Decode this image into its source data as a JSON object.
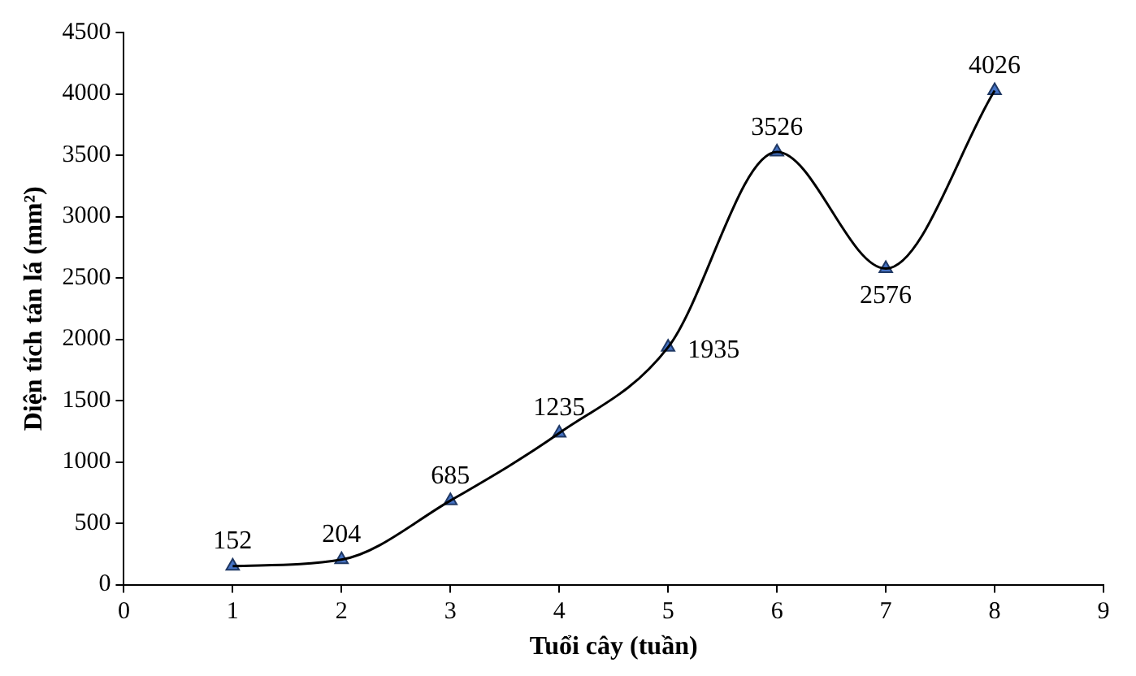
{
  "chart_data": {
    "type": "line",
    "xlabel": "Tuổi cây (tuần)",
    "ylabel": "Diện tích tán lá (mm²)",
    "x": [
      1,
      2,
      3,
      4,
      5,
      6,
      7,
      8
    ],
    "series": [
      {
        "color": "#000000",
        "marker": "none",
        "values": [
          152,
          204,
          685,
          1235,
          1935,
          3526,
          2576,
          4026
        ]
      },
      {
        "type": "scatter",
        "color": "#4472c4",
        "values": [
          152,
          204,
          685,
          1235,
          1935,
          3526,
          2576,
          4026
        ],
        "value_labels": [
          "152",
          "204",
          "685",
          "1235",
          "1935",
          "3526",
          "2576",
          "4026"
        ]
      }
    ],
    "xlim": [
      0,
      9
    ],
    "xticks": [
      0,
      1,
      2,
      3,
      4,
      5,
      6,
      7,
      8,
      9
    ],
    "ylim": [
      0,
      4500
    ],
    "yticks": [
      0,
      500,
      1000,
      1500,
      2000,
      2500,
      3000,
      3500,
      4000,
      4500
    ],
    "grid": false,
    "legend": false,
    "marker": "triangle",
    "line_style": "solid"
  }
}
